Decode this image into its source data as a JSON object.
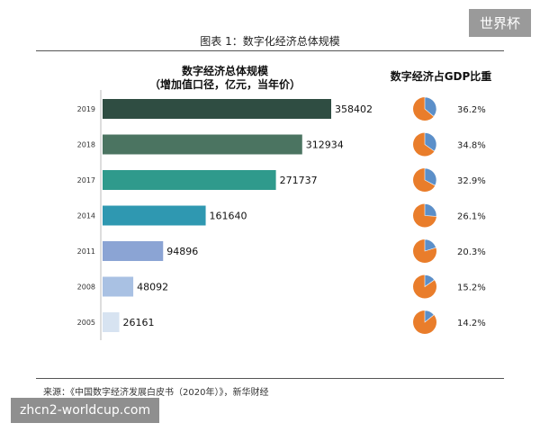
{
  "figure_title": "图表 1：数字化经济总体规模",
  "watermark_top": "世界杯",
  "watermark_bottom": "zhcn2-worldcup.com",
  "source_note": "来源：《中国数字经济发展白皮书（2020年）》，新华财经",
  "chart_data": [
    {
      "type": "bar",
      "orientation": "horizontal",
      "title": "数字经济总体规模",
      "subtitle": "（增加值口径，亿元，当年价）",
      "categories": [
        "2019",
        "2018",
        "2017",
        "2014",
        "2011",
        "2008",
        "2005"
      ],
      "values": [
        358402,
        312934,
        271737,
        161640,
        94896,
        48092,
        26161
      ],
      "value_labels": [
        "358402",
        "312934",
        "271737",
        "161640",
        "94896",
        "48092",
        "26161"
      ],
      "colors": [
        "#2f4d42",
        "#4b7461",
        "#2f9a8c",
        "#2f98b1",
        "#8ba4d4",
        "#a9c1e3",
        "#d7e3f1"
      ],
      "xlim": [
        0,
        358402
      ],
      "grid": false,
      "legend": false
    },
    {
      "type": "pie",
      "title": "数字经济占GDP比重",
      "categories": [
        "2019",
        "2018",
        "2017",
        "2014",
        "2011",
        "2008",
        "2005"
      ],
      "values": [
        36.2,
        34.8,
        32.9,
        26.1,
        20.3,
        15.2,
        14.2
      ],
      "value_labels": [
        "36.2%",
        "34.8%",
        "32.9%",
        "26.1%",
        "20.3%",
        "15.2%",
        "14.2%"
      ],
      "slice_color": "#5b8fc9",
      "rest_color": "#e97d2b"
    }
  ]
}
